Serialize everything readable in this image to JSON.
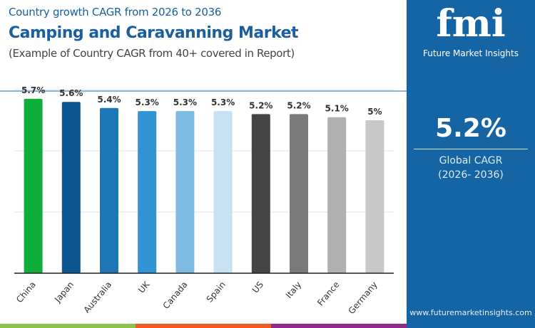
{
  "header": {
    "subtitle": "Country growth CAGR from 2026 to 2036",
    "title": "Camping and Caravanning Market",
    "note": "(Example of Country CAGR from 40+ covered in Report)"
  },
  "panel": {
    "logo_text": "fmi",
    "brand": "Future Market Insights",
    "value": "5.2%",
    "label": "Global CAGR",
    "range": "(2026- 2036)",
    "url": "www.futuremarketinsights.com",
    "color": "#1565a5"
  },
  "chart_data": {
    "type": "bar",
    "categories": [
      "China",
      "Japan",
      "Australia",
      "UK",
      "Canada",
      "Spain",
      "US",
      "Italy",
      "France",
      "Germany"
    ],
    "values": [
      5.7,
      5.6,
      5.4,
      5.3,
      5.3,
      5.3,
      5.2,
      5.2,
      5.1,
      5.0
    ],
    "data_labels": [
      "5.7%",
      "5.6%",
      "5.4%",
      "5.3%",
      "5.3%",
      "5.3%",
      "5.2%",
      "5.2%",
      "5.1%",
      "5%"
    ],
    "colors": [
      "#0fae3a",
      "#0b5690",
      "#1f76b4",
      "#2f93d4",
      "#7fbbe1",
      "#c6e1f2",
      "#444444",
      "#7a7a7a",
      "#b0b0b0",
      "#c8c8c8"
    ],
    "ylim": [
      0,
      6
    ],
    "grid": true,
    "xlabel": "",
    "ylabel": ""
  },
  "stripes": [
    "#8bc34a",
    "#f05a24",
    "#8e2c8a"
  ]
}
